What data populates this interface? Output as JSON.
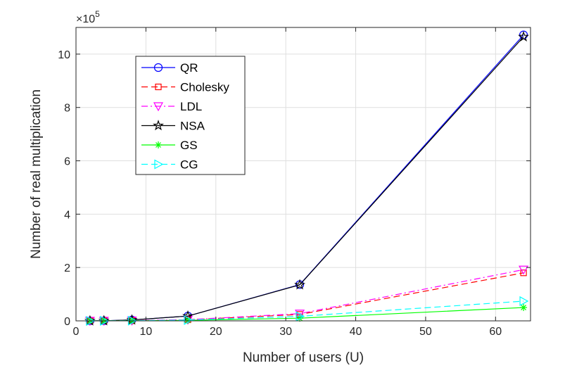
{
  "chart_data": {
    "type": "line",
    "xlabel": "Number of users (U)",
    "ylabel": "Number of real multiplication",
    "y_multiplier_label": "×10",
    "y_multiplier_exponent": "5",
    "xlim": [
      0,
      65
    ],
    "ylim": [
      0,
      11
    ],
    "xticks": [
      0,
      10,
      20,
      30,
      40,
      50,
      60
    ],
    "yticks": [
      0,
      2,
      4,
      6,
      8,
      10
    ],
    "grid": true,
    "legend_position": "upper-left",
    "x": [
      2,
      4,
      8,
      16,
      32,
      64
    ],
    "series": [
      {
        "name": "QR",
        "color": "#0000ff",
        "dash": "solid",
        "marker": "circle",
        "values": [
          0.001,
          0.005,
          0.035,
          0.18,
          1.36,
          10.72
        ]
      },
      {
        "name": "Cholesky",
        "color": "#ff0000",
        "dash": "dashed",
        "marker": "square",
        "values": [
          0.0005,
          0.002,
          0.008,
          0.04,
          0.24,
          1.8
        ]
      },
      {
        "name": "LDL",
        "color": "#ff00ff",
        "dash": "dashdot",
        "marker": "triangle-down",
        "values": [
          0.0005,
          0.002,
          0.009,
          0.045,
          0.27,
          1.92
        ]
      },
      {
        "name": "NSA",
        "color": "#000000",
        "dash": "solid",
        "marker": "star",
        "values": [
          0.001,
          0.005,
          0.035,
          0.18,
          1.35,
          10.65
        ]
      },
      {
        "name": "GS",
        "color": "#00ff00",
        "dash": "solid",
        "marker": "asterisk",
        "values": [
          0.0003,
          0.001,
          0.004,
          0.02,
          0.1,
          0.5
        ]
      },
      {
        "name": "CG",
        "color": "#00ffff",
        "dash": "dashed",
        "marker": "triangle-right",
        "values": [
          0.0004,
          0.0015,
          0.006,
          0.03,
          0.17,
          0.74
        ]
      }
    ]
  }
}
